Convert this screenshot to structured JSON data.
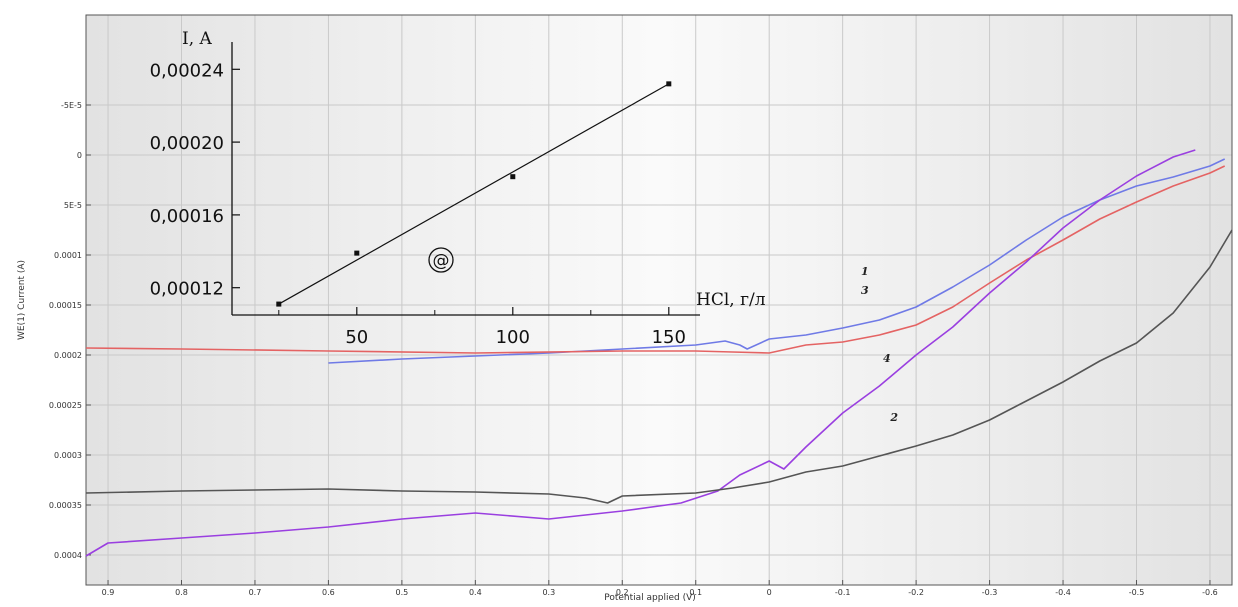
{
  "colors": {
    "background_edge": "#e2e2e2",
    "background_center": "#fafafa",
    "grid": "#c9c9c9",
    "curve_1": "#6f7ae6",
    "curve_3": "#e46363",
    "curve_4": "#9a3fe0",
    "curve_2": "#555555",
    "inset_line": "#111111"
  },
  "chart_data": [
    {
      "type": "line",
      "title": "",
      "xlabel": "Potential applied (V)",
      "ylabel": "WE(1) Current (A)",
      "x_reversed": true,
      "y_reversed": true,
      "xlim": [
        0.93,
        -0.63
      ],
      "ylim": [
        -0.00014,
        0.00043
      ],
      "grid": true,
      "x_ticks": [
        0.9,
        0.8,
        0.7,
        0.6,
        0.5,
        0.4,
        0.3,
        0.2,
        0.1,
        0,
        -0.1,
        -0.2,
        -0.3,
        -0.4,
        -0.5,
        -0.6
      ],
      "x_tick_labels": [
        "0.9",
        "0.8",
        "0.7",
        "0.6",
        "0.5",
        "0.4",
        "0.3",
        "0.2",
        "0.1",
        "0",
        "-0.1",
        "-0.2",
        "-0.3",
        "-0.4",
        "-0.5",
        "-0.6"
      ],
      "y_ticks": [
        -5e-05,
        0,
        5e-05,
        0.0001,
        0.00015,
        0.0002,
        0.00025,
        0.0003,
        0.00035,
        0.0004
      ],
      "y_tick_labels": [
        "-5E-5",
        "0",
        "5E-5",
        "0.0001",
        "0.00015",
        "0.0002",
        "0.00025",
        "0.0003",
        "0.00035",
        "0.0004"
      ],
      "series": [
        {
          "name": "1",
          "color_key": "curve_1",
          "label_at": [
            -0.125,
            0.00012
          ],
          "x": [
            0.6,
            0.5,
            0.4,
            0.3,
            0.2,
            0.1,
            0.06,
            0.04,
            0.03,
            0.0,
            -0.05,
            -0.1,
            -0.15,
            -0.2,
            -0.25,
            -0.3,
            -0.35,
            -0.4,
            -0.45,
            -0.5,
            -0.55,
            -0.6,
            -0.62
          ],
          "y": [
            0.000208,
            0.000204,
            0.000201,
            0.000198,
            0.000194,
            0.00019,
            0.000186,
            0.00019,
            0.000194,
            0.000184,
            0.00018,
            0.000173,
            0.000165,
            0.000152,
            0.000132,
            0.00011,
            8.5e-05,
            6.2e-05,
            4.5e-05,
            3.1e-05,
            2.2e-05,
            1.1e-05,
            4e-06
          ]
        },
        {
          "name": "3",
          "color_key": "curve_3",
          "label_at": [
            -0.125,
            0.000139
          ],
          "x": [
            0.93,
            0.8,
            0.6,
            0.4,
            0.2,
            0.1,
            0.05,
            0.0,
            -0.05,
            -0.1,
            -0.15,
            -0.2,
            -0.25,
            -0.3,
            -0.35,
            -0.4,
            -0.45,
            -0.5,
            -0.55,
            -0.6,
            -0.62
          ],
          "y": [
            0.000193,
            0.000194,
            0.000196,
            0.000198,
            0.000196,
            0.000196,
            0.000197,
            0.000198,
            0.00019,
            0.000187,
            0.00018,
            0.00017,
            0.000152,
            0.000128,
            0.000105,
            8.5e-05,
            6.4e-05,
            4.7e-05,
            3.1e-05,
            1.8e-05,
            1.1e-05
          ]
        },
        {
          "name": "4",
          "color_key": "curve_4",
          "label_at": [
            -0.155,
            0.000207
          ],
          "x": [
            0.93,
            0.9,
            0.8,
            0.7,
            0.6,
            0.5,
            0.4,
            0.3,
            0.2,
            0.12,
            0.07,
            0.04,
            0.0,
            -0.02,
            -0.05,
            -0.1,
            -0.15,
            -0.2,
            -0.25,
            -0.3,
            -0.35,
            -0.4,
            -0.45,
            -0.5,
            -0.55,
            -0.58
          ],
          "y": [
            0.000401,
            0.000388,
            0.000383,
            0.000378,
            0.000372,
            0.000364,
            0.000358,
            0.000364,
            0.000356,
            0.000348,
            0.000336,
            0.00032,
            0.000306,
            0.000314,
            0.000292,
            0.000258,
            0.000231,
            0.0002,
            0.000172,
            0.000138,
            0.000107,
            7.3e-05,
            4.5e-05,
            2.1e-05,
            2e-06,
            -5e-06
          ]
        },
        {
          "name": "2",
          "color_key": "curve_2",
          "label_at": [
            -0.165,
            0.000266
          ],
          "x": [
            0.93,
            0.8,
            0.7,
            0.6,
            0.5,
            0.4,
            0.3,
            0.25,
            0.22,
            0.2,
            0.1,
            0.05,
            0.0,
            -0.05,
            -0.1,
            -0.15,
            -0.2,
            -0.25,
            -0.3,
            -0.35,
            -0.4,
            -0.45,
            -0.5,
            -0.55,
            -0.6,
            -0.63
          ],
          "y": [
            0.000338,
            0.000336,
            0.000335,
            0.000334,
            0.000336,
            0.000337,
            0.000339,
            0.000343,
            0.000348,
            0.000341,
            0.000338,
            0.000333,
            0.000327,
            0.000317,
            0.000311,
            0.000301,
            0.000291,
            0.00028,
            0.000265,
            0.000246,
            0.000227,
            0.000206,
            0.000188,
            0.000158,
            0.000112,
            7.5e-05
          ]
        }
      ]
    },
    {
      "type": "scatter",
      "title": "",
      "annotation": "@",
      "xlabel": "HCl, г/л",
      "ylabel": "I, A",
      "xlim": [
        10,
        160
      ],
      "ylim": [
        0.000105,
        0.000255
      ],
      "x_ticks": [
        50,
        100,
        150
      ],
      "x_tick_labels": [
        "50",
        "100",
        "150"
      ],
      "y_ticks": [
        0.00012,
        0.00016,
        0.0002,
        0.00024
      ],
      "y_tick_labels": [
        "0,00012",
        "0,00016",
        "0,00020",
        "0,00024"
      ],
      "points": {
        "x": [
          25,
          50,
          100,
          150
        ],
        "y": [
          0.000111,
          0.000139,
          0.000181,
          0.000232
        ]
      },
      "fit_line": {
        "x": [
          25,
          150
        ],
        "y": [
          0.000111,
          0.000232
        ]
      }
    }
  ]
}
